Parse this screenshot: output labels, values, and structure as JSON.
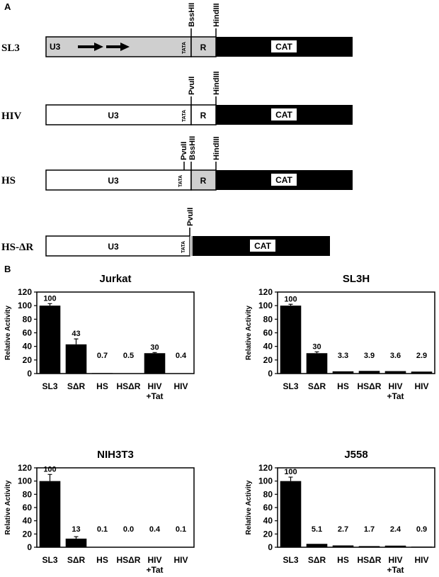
{
  "panel_a": {
    "label": "A",
    "constructs": [
      {
        "name": "SL3",
        "u3": "U3",
        "tata": "TATA",
        "r": "R",
        "cat": "CAT",
        "sites": [
          "BssHII",
          "HindIII"
        ]
      },
      {
        "name": "HIV",
        "u3": "U3",
        "tata": "TATA",
        "r": "R",
        "cat": "CAT",
        "sites": [
          "PvuII",
          "HindIII"
        ]
      },
      {
        "name": "HS",
        "u3": "U3",
        "tata": "TATA",
        "r": "R",
        "cat": "CAT",
        "sites": [
          "PvuII",
          "BssHII",
          "HindIII"
        ]
      },
      {
        "name": "HS-ΔR",
        "u3": "U3",
        "tata": "TATA",
        "cat": "CAT",
        "sites": [
          "PvuII"
        ]
      }
    ]
  },
  "panel_b_label": "B",
  "chart_data": [
    {
      "type": "bar",
      "title": "Jurkat",
      "y_label": "Relative Activity",
      "categories": [
        "SL3",
        "SΔR",
        "HS",
        "HSΔR",
        "HIV +Tat",
        "HIV"
      ],
      "values": [
        100,
        43,
        0.7,
        0.5,
        30,
        0.4
      ],
      "value_labels": [
        "100",
        "43",
        "0.7",
        "0.5",
        "30",
        "0.4"
      ],
      "errors": [
        3,
        8,
        0,
        0,
        1,
        0
      ],
      "color": "#000000",
      "ylim": [
        0,
        120
      ],
      "yticks": [
        0,
        20,
        40,
        60,
        80,
        100,
        120
      ]
    },
    {
      "type": "bar",
      "title": "SL3H",
      "y_label": "Relative Activity",
      "categories": [
        "SL3",
        "SΔR",
        "HS",
        "HSΔR",
        "HIV +Tat",
        "HIV"
      ],
      "values": [
        100,
        30,
        3.3,
        3.9,
        3.6,
        2.9
      ],
      "value_labels": [
        "100",
        "30",
        "3.3",
        "3.9",
        "3.6",
        "2.9"
      ],
      "errors": [
        2,
        2,
        0,
        0,
        0,
        0
      ],
      "color": "#000000",
      "ylim": [
        0,
        120
      ],
      "yticks": [
        0,
        20,
        40,
        60,
        80,
        100,
        120
      ]
    },
    {
      "type": "bar",
      "title": "NIH3T3",
      "y_label": "Relative Activity",
      "categories": [
        "SL3",
        "SΔR",
        "HS",
        "HSΔR",
        "HIV +Tat",
        "HIV"
      ],
      "values": [
        100,
        13,
        0.1,
        0.0,
        0.4,
        0.1
      ],
      "value_labels": [
        "100",
        "13",
        "0.1",
        "0.0",
        "0.4",
        "0.1"
      ],
      "errors": [
        10,
        3,
        0,
        0,
        0,
        0
      ],
      "color": "#000000",
      "ylim": [
        0,
        120
      ],
      "yticks": [
        0,
        20,
        40,
        60,
        80,
        100,
        120
      ]
    },
    {
      "type": "bar",
      "title": "J558",
      "y_label": "Relative Activity",
      "categories": [
        "SL3",
        "SΔR",
        "HS",
        "HSΔR",
        "HIV +Tat",
        "HIV"
      ],
      "values": [
        100,
        5.1,
        2.7,
        1.7,
        2.4,
        0.9
      ],
      "value_labels": [
        "100",
        "5.1",
        "2.7",
        "1.7",
        "2.4",
        "0.9"
      ],
      "errors": [
        6,
        0,
        0,
        0,
        0,
        0
      ],
      "color": "#000000",
      "ylim": [
        0,
        120
      ],
      "yticks": [
        0,
        20,
        40,
        60,
        80,
        100,
        120
      ]
    }
  ]
}
